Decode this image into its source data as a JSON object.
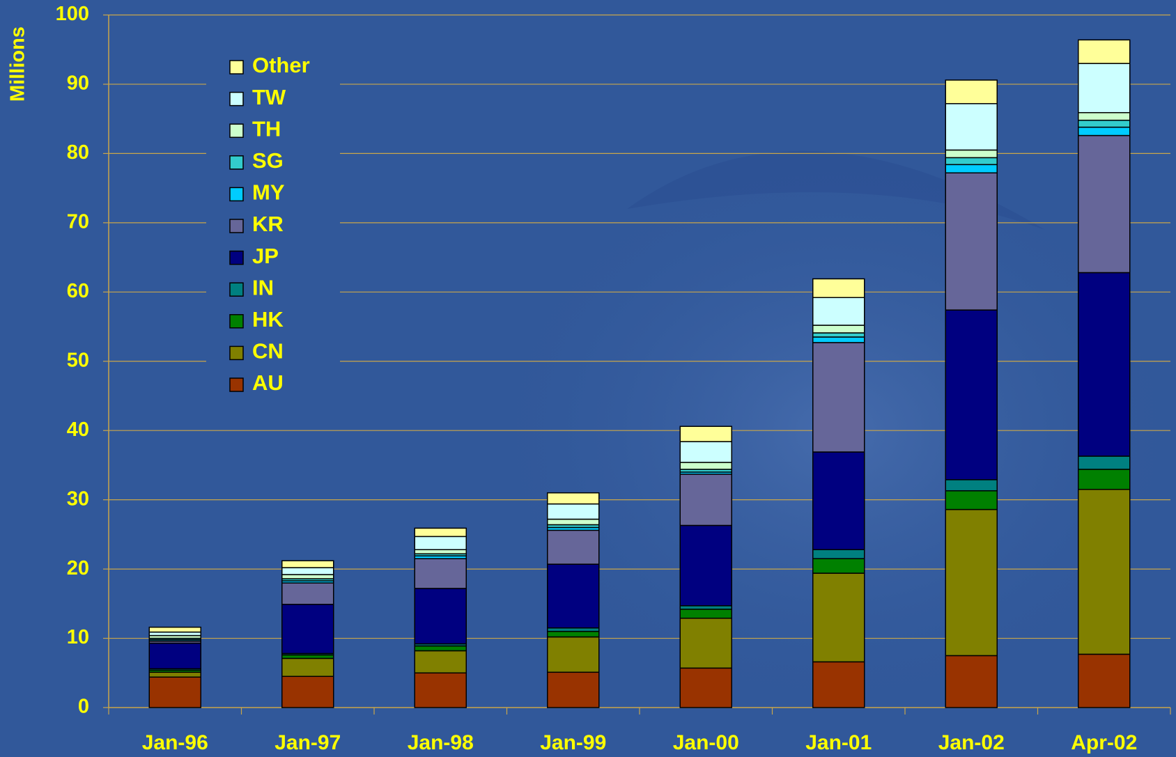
{
  "chart_data": {
    "type": "stacked_bar",
    "y_label": "Millions",
    "categories": [
      "Jan-96",
      "Jan-97",
      "Jan-98",
      "Jan-99",
      "Jan-00",
      "Jan-01",
      "Jan-02",
      "Apr-02"
    ],
    "series": [
      {
        "name": "AU",
        "color": "#993300",
        "values": [
          4.4,
          4.5,
          5.0,
          5.1,
          5.7,
          6.6,
          7.5,
          7.7
        ]
      },
      {
        "name": "CN",
        "color": "#808000",
        "values": [
          0.7,
          2.6,
          3.2,
          5.1,
          7.2,
          12.8,
          21.1,
          23.8
        ]
      },
      {
        "name": "HK",
        "color": "#008000",
        "values": [
          0.3,
          0.5,
          0.7,
          0.8,
          1.3,
          2.1,
          2.7,
          2.9
        ]
      },
      {
        "name": "IN",
        "color": "#008080",
        "values": [
          0.2,
          0.2,
          0.3,
          0.5,
          0.5,
          1.3,
          1.6,
          1.9
        ]
      },
      {
        "name": "JP",
        "color": "#000080",
        "values": [
          3.7,
          7.1,
          8.0,
          9.2,
          11.6,
          14.1,
          24.5,
          26.5
        ]
      },
      {
        "name": "KR",
        "color": "#666699",
        "values": [
          0.3,
          3.1,
          4.3,
          4.9,
          7.4,
          15.8,
          19.8,
          19.8
        ]
      },
      {
        "name": "MY",
        "color": "#00ccff",
        "values": [
          0.2,
          0.3,
          0.4,
          0.4,
          0.3,
          0.8,
          1.2,
          1.2
        ]
      },
      {
        "name": "SG",
        "color": "#33cccc",
        "values": [
          0.2,
          0.3,
          0.3,
          0.4,
          0.4,
          0.6,
          1.0,
          1.0
        ]
      },
      {
        "name": "TH",
        "color": "#ccffcc",
        "values": [
          0.4,
          0.6,
          0.6,
          0.8,
          1.0,
          1.1,
          1.1,
          1.1
        ]
      },
      {
        "name": "TW",
        "color": "#ccffff",
        "values": [
          0.5,
          1.0,
          1.9,
          2.2,
          3.0,
          4.0,
          6.7,
          7.1
        ]
      },
      {
        "name": "Other",
        "color": "#ffff99",
        "values": [
          0.7,
          1.0,
          1.2,
          1.6,
          2.2,
          2.7,
          3.4,
          3.4
        ]
      }
    ],
    "ylim": [
      0,
      100
    ],
    "yticks": [
      0,
      10,
      20,
      30,
      40,
      50,
      60,
      70,
      80,
      90,
      100
    ],
    "grid": true,
    "legend": "upper left"
  }
}
